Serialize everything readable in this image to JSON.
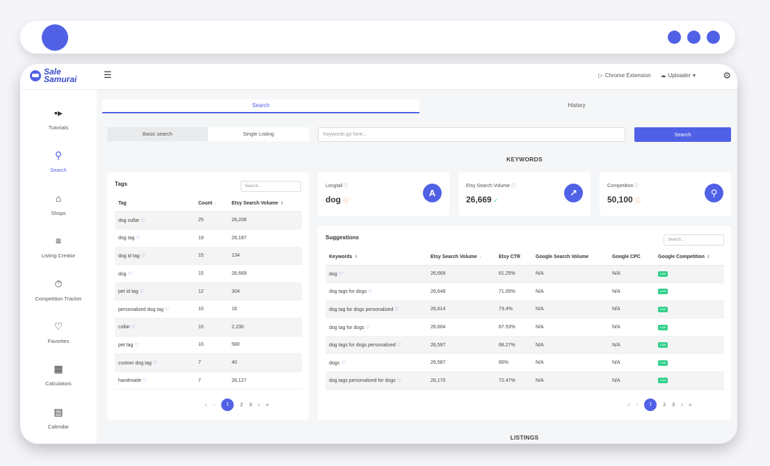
{
  "header": {
    "logo_line1": "Sale",
    "logo_line2": "Samurai",
    "chrome_extension": "Chrome Extension",
    "uploader": "Uploader"
  },
  "sidebar": {
    "items": [
      {
        "label": "Tutorials",
        "icon": "video-icon"
      },
      {
        "label": "Search",
        "icon": "search-icon"
      },
      {
        "label": "Shops",
        "icon": "shop-icon"
      },
      {
        "label": "Listing Creator",
        "icon": "list-edit-icon"
      },
      {
        "label": "Competition Tracker",
        "icon": "stopwatch-icon"
      },
      {
        "label": "Favorites",
        "icon": "heart-icon"
      },
      {
        "label": "Calculators",
        "icon": "calculator-icon"
      },
      {
        "label": "Calendar",
        "icon": "calendar-icon"
      }
    ]
  },
  "tabs": {
    "search": "Search",
    "history": "History"
  },
  "modes": {
    "basic": "Basic search",
    "single": "Single Listing"
  },
  "search": {
    "placeholder": "Keywords go here...",
    "button": "Search"
  },
  "sections": {
    "keywords": "KEYWORDS",
    "listings": "LISTINGS"
  },
  "tags": {
    "title": "Tags",
    "search_placeholder": "Search...",
    "columns": [
      "Tag",
      "Count",
      "Etsy Search Volume"
    ],
    "rows": [
      [
        "dog collar",
        "25",
        "26,208"
      ],
      [
        "dog tag",
        "19",
        "26,187"
      ],
      [
        "dog id tag",
        "15",
        "134"
      ],
      [
        "dog",
        "15",
        "26,669"
      ],
      [
        "pet id tag",
        "12",
        "304"
      ],
      [
        "personalized dog tag",
        "10",
        "16"
      ],
      [
        "collar",
        "10",
        "2,230"
      ],
      [
        "pet tag",
        "10",
        "580"
      ],
      [
        "custom dog tag",
        "7",
        "40"
      ],
      [
        "handmade",
        "7",
        "26,127"
      ]
    ],
    "pages": [
      "1",
      "2",
      "3"
    ]
  },
  "stats": [
    {
      "label": "Longtail",
      "value": "dog",
      "bubble": "A"
    },
    {
      "label": "Etsy Search Volume",
      "value": "26,669",
      "bubble": "chart"
    },
    {
      "label": "Competition",
      "value": "50,100",
      "bubble": "search"
    }
  ],
  "suggestions": {
    "title": "Suggestions",
    "search_placeholder": "Search...",
    "columns": [
      "Keywords",
      "Etsy Search Volume",
      "Etsy CTR",
      "Google Search Volume",
      "Google CPC",
      "Google Competition"
    ],
    "rows": [
      [
        "dog",
        "26,669",
        "61.25%",
        "N/A",
        "N/A",
        "Low"
      ],
      [
        "dog tags for dogs",
        "26,649",
        "71.05%",
        "N/A",
        "N/A",
        "Low"
      ],
      [
        "dog tag for dogs personalized",
        "26,614",
        "73.4%",
        "N/A",
        "N/A",
        "Low"
      ],
      [
        "dog tag for dogs",
        "26,604",
        "67.53%",
        "N/A",
        "N/A",
        "Low"
      ],
      [
        "dog tags for dogs personalized",
        "26,597",
        "68.27%",
        "N/A",
        "N/A",
        "Low"
      ],
      [
        "dogs",
        "26,587",
        "66%",
        "N/A",
        "N/A",
        "Low"
      ],
      [
        "dog tags personalized for dogs",
        "26,170",
        "72.47%",
        "N/A",
        "N/A",
        "Low"
      ]
    ],
    "pages": [
      "1",
      "2",
      "3"
    ]
  },
  "colors": {
    "accent": "#5061e6",
    "low_badge": "#2fcf8a"
  }
}
